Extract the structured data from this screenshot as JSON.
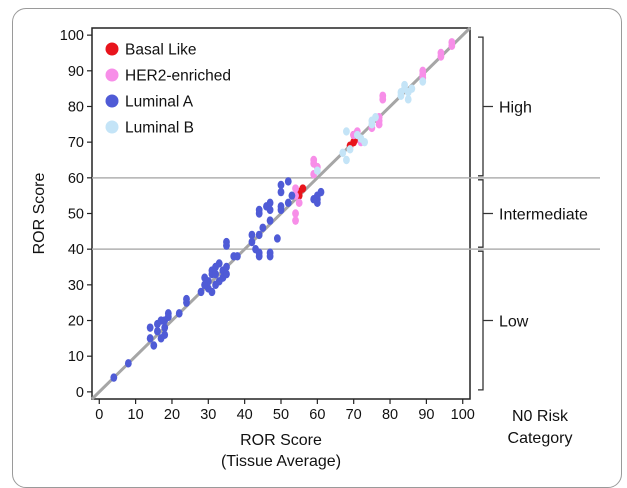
{
  "chart_data": {
    "type": "scatter",
    "xlabel": [
      "ROR Score",
      "(Tissue Average)"
    ],
    "ylabel": "ROR Score",
    "xlim": [
      -2,
      102
    ],
    "ylim": [
      -2,
      102
    ],
    "x_ticks": [
      0,
      10,
      20,
      30,
      40,
      50,
      60,
      70,
      80,
      90,
      100
    ],
    "y_ticks": [
      0,
      10,
      20,
      30,
      40,
      50,
      60,
      70,
      80,
      90,
      100
    ],
    "grid": false,
    "legend_position": "top-left",
    "identity_line": true,
    "thresholds": [
      40,
      60
    ],
    "risk_category_title": [
      "N0 Risk",
      "Category"
    ],
    "risk_categories": [
      {
        "label": "High",
        "from": 60,
        "to": 100
      },
      {
        "label": "Intermediate",
        "from": 40,
        "to": 60
      },
      {
        "label": "Low",
        "from": 0,
        "to": 40
      }
    ],
    "series": [
      {
        "name": "Basal Like",
        "color": "#e8141c",
        "points": [
          [
            55,
            56
          ],
          [
            56,
            57
          ],
          [
            55,
            55
          ],
          [
            70,
            70
          ],
          [
            71,
            71
          ],
          [
            70,
            72
          ],
          [
            69,
            69
          ]
        ]
      },
      {
        "name": "HER2-enriched",
        "color": "#f78ee8",
        "points": [
          [
            54,
            55
          ],
          [
            54,
            57
          ],
          [
            54,
            50
          ],
          [
            54,
            48
          ],
          [
            55,
            53
          ],
          [
            59,
            61
          ],
          [
            59,
            64
          ],
          [
            59,
            65
          ],
          [
            60,
            63
          ],
          [
            70,
            72
          ],
          [
            71,
            73
          ],
          [
            72,
            70
          ],
          [
            75,
            74
          ],
          [
            77,
            75
          ],
          [
            77,
            76
          ],
          [
            77,
            77
          ],
          [
            78,
            82
          ],
          [
            78,
            83
          ],
          [
            89,
            88
          ],
          [
            89,
            89
          ],
          [
            89,
            90
          ],
          [
            94,
            94
          ],
          [
            94,
            95
          ],
          [
            97,
            97
          ],
          [
            97,
            98
          ]
        ]
      },
      {
        "name": "Luminal A",
        "color": "#4f5bd6",
        "points": [
          [
            4,
            4
          ],
          [
            8,
            8
          ],
          [
            14,
            15
          ],
          [
            14,
            18
          ],
          [
            15,
            13
          ],
          [
            16,
            17
          ],
          [
            16,
            19
          ],
          [
            17,
            15
          ],
          [
            18,
            16
          ],
          [
            18,
            18
          ],
          [
            18,
            20
          ],
          [
            19,
            21
          ],
          [
            19,
            22
          ],
          [
            17,
            20
          ],
          [
            22,
            22
          ],
          [
            24,
            25
          ],
          [
            24,
            26
          ],
          [
            28,
            28
          ],
          [
            29,
            30
          ],
          [
            29,
            32
          ],
          [
            30,
            29
          ],
          [
            30,
            31
          ],
          [
            31,
            33
          ],
          [
            31,
            34
          ],
          [
            31,
            28
          ],
          [
            32,
            35
          ],
          [
            32,
            30
          ],
          [
            32,
            33
          ],
          [
            33,
            31
          ],
          [
            33,
            36
          ],
          [
            34,
            32
          ],
          [
            34,
            34
          ],
          [
            35,
            33
          ],
          [
            35,
            35
          ],
          [
            35,
            41
          ],
          [
            35,
            42
          ],
          [
            37,
            38
          ],
          [
            38,
            38
          ],
          [
            42,
            42
          ],
          [
            42,
            44
          ],
          [
            43,
            40
          ],
          [
            44,
            39
          ],
          [
            44,
            38
          ],
          [
            44,
            44
          ],
          [
            45,
            46
          ],
          [
            44,
            50
          ],
          [
            44,
            51
          ],
          [
            46,
            52
          ],
          [
            47,
            53
          ],
          [
            47,
            51
          ],
          [
            47,
            48
          ],
          [
            47,
            39
          ],
          [
            47,
            38
          ],
          [
            49,
            43
          ],
          [
            50,
            51
          ],
          [
            50,
            52
          ],
          [
            50,
            56
          ],
          [
            50,
            58
          ],
          [
            52,
            53
          ],
          [
            53,
            55
          ],
          [
            52,
            59
          ],
          [
            60,
            54
          ],
          [
            60,
            55
          ],
          [
            60,
            53
          ],
          [
            61,
            56
          ],
          [
            59,
            54
          ],
          [
            29,
            30
          ]
        ]
      },
      {
        "name": "Luminal B",
        "color": "#c4e4f7",
        "points": [
          [
            60,
            62
          ],
          [
            67,
            67
          ],
          [
            68,
            65
          ],
          [
            68,
            73
          ],
          [
            69,
            68
          ],
          [
            71,
            72
          ],
          [
            72,
            71
          ],
          [
            73,
            70
          ],
          [
            75,
            75
          ],
          [
            75,
            76
          ],
          [
            76,
            77
          ],
          [
            83,
            83
          ],
          [
            83,
            84
          ],
          [
            84,
            85
          ],
          [
            84,
            86
          ],
          [
            85,
            82
          ],
          [
            85,
            84
          ],
          [
            86,
            85
          ],
          [
            89,
            87
          ]
        ]
      }
    ]
  }
}
